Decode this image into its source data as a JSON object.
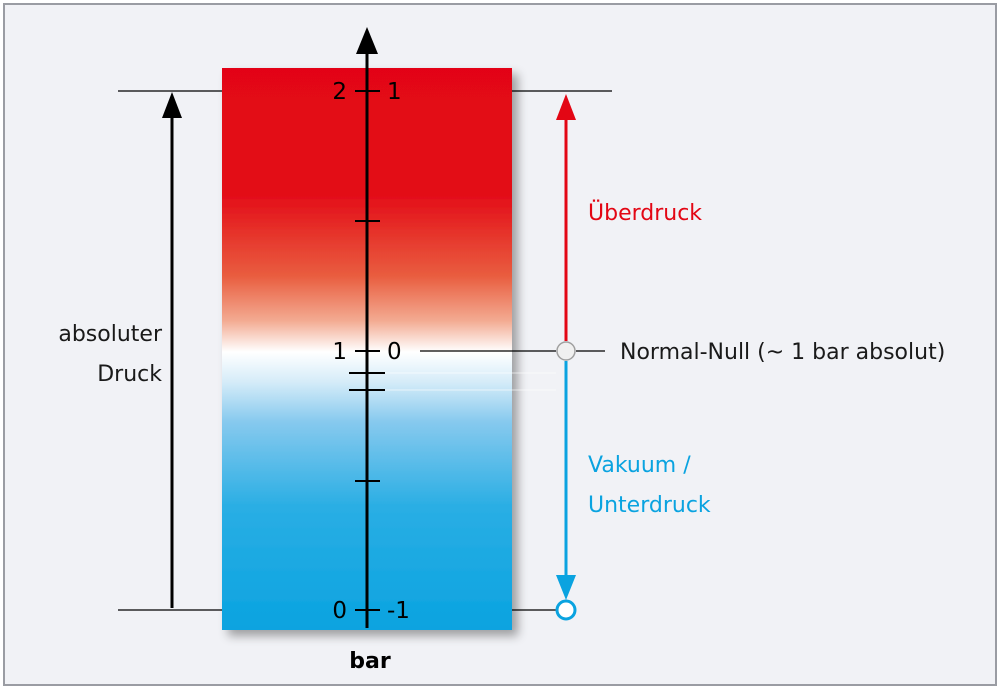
{
  "colors": {
    "background": "#f1f2f6",
    "frame": "#9a9ca3",
    "overpressure": "#e30614",
    "vacuum": "#0aa3e0",
    "line": "#000000"
  },
  "scale": {
    "unit": "bar",
    "absolute_ticks": {
      "top": "2",
      "middle": "1",
      "bottom": "0"
    },
    "relative_ticks": {
      "top": "1",
      "middle": "0",
      "bottom": "-1"
    }
  },
  "labels": {
    "absolute_line1": "absoluter",
    "absolute_line2": "Druck",
    "overpressure": "Überdruck",
    "normal_zero": "Normal-Null (~ 1 bar absolut)",
    "vacuum_line1": "Vakuum /",
    "vacuum_line2": "Unterdruck"
  }
}
